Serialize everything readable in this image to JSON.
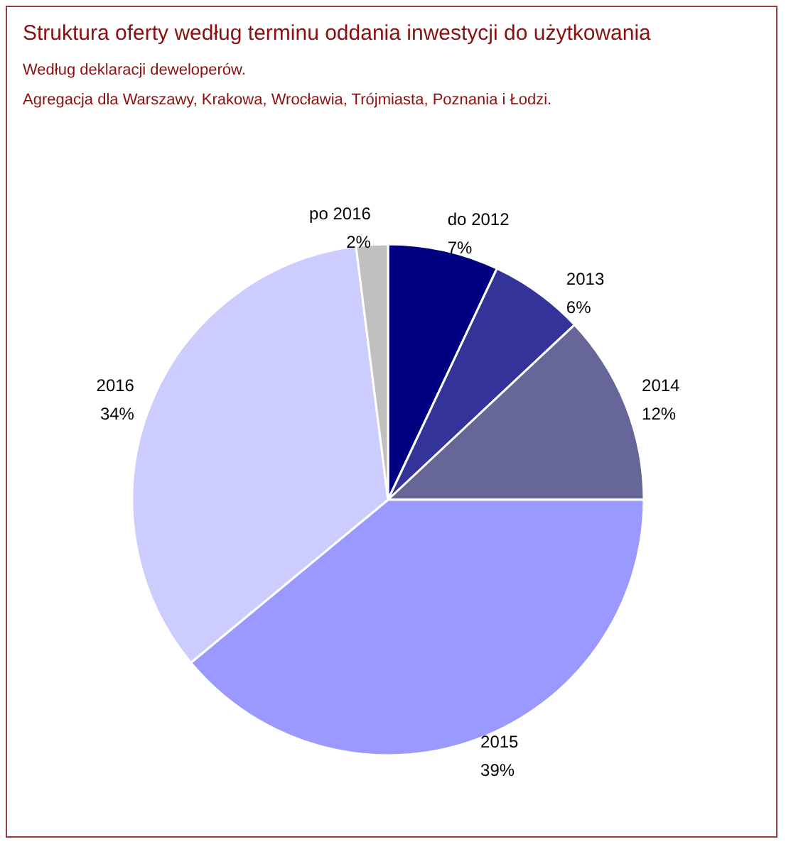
{
  "chart_data": {
    "type": "pie",
    "title": "Struktura oferty według terminu oddania inwestycji do użytkowania",
    "subtitle": "Według deklaracji deweloperów.\nAgregacja dla Warszawy, Krakowa, Wrocławia, Trójmiasta, Poznania i Łodzi.",
    "categories": [
      "do 2012",
      "2013",
      "2014",
      "2015",
      "2016",
      "po 2016"
    ],
    "values": [
      7,
      6,
      12,
      39,
      34,
      2
    ],
    "value_labels": [
      "7%",
      "6%",
      "12%",
      "39%",
      "34%",
      "2%"
    ],
    "colors": [
      "#000080",
      "#333399",
      "#666699",
      "#9999ff",
      "#ccccff",
      "#c0c0c0"
    ]
  }
}
